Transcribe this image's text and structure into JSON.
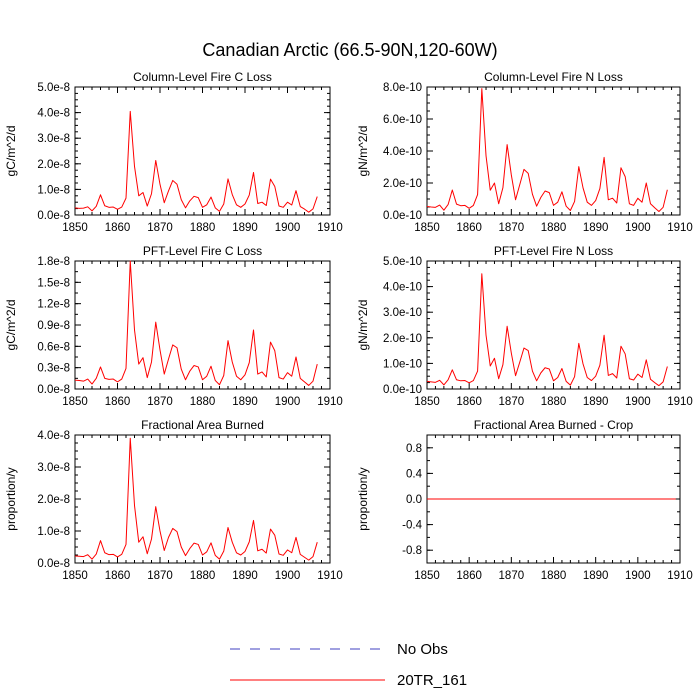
{
  "figure": {
    "title": "Canadian Arctic (66.5-90N,120-60W)"
  },
  "colors": {
    "series_20tr": "#ff0000",
    "series_obs": "#4040c0",
    "axis": "#000000"
  },
  "legend": {
    "placement": "bottom-center",
    "items": [
      {
        "name": "No Obs",
        "style": "dashed",
        "color": "#4040c0"
      },
      {
        "name": "20TR_161",
        "style": "solid",
        "color": "#ff0000"
      }
    ]
  },
  "chart_data": [
    {
      "type": "line",
      "title": "Column-Level Fire C Loss",
      "ylabel": "gC/m^2/d",
      "xlim": [
        1850,
        1910
      ],
      "ylim": [
        0,
        5e-08
      ],
      "xticks": [
        1850,
        1860,
        1870,
        1880,
        1890,
        1900,
        1910
      ],
      "xtick_labels": [
        "1850",
        "1860",
        "1870",
        "1880",
        "1890",
        "1900",
        "1910"
      ],
      "yticks": [
        0,
        1e-08,
        2e-08,
        3e-08,
        4e-08,
        5e-08
      ],
      "ytick_labels": [
        "0.0e-8",
        "1.0e-8",
        "2.0e-8",
        "3.0e-8",
        "4.0e-8",
        "5.0e-8"
      ],
      "minor_yticks": 4,
      "series": [
        {
          "name": "20TR_161",
          "color": "#ff0000",
          "x_start": 1850,
          "values": [
            2.8e-09,
            2.6e-09,
            2.7e-09,
            3.2e-09,
            1.6e-09,
            3.4e-09,
            7.9e-09,
            3.6e-09,
            3e-09,
            3.1e-09,
            2.2e-09,
            3.1e-09,
            6.6e-09,
            4.05e-08,
            1.9e-08,
            7.5e-09,
            8.8e-09,
            3.5e-09,
            8.3e-09,
            2.13e-08,
            1.2e-08,
            4.8e-09,
            9.4e-09,
            1.35e-08,
            1.2e-08,
            6e-09,
            2.8e-09,
            5.5e-09,
            7.3e-09,
            6.8e-09,
            3e-09,
            4e-09,
            7e-09,
            2.8e-09,
            1.4e-09,
            4.3e-09,
            1.41e-08,
            8e-09,
            4e-09,
            3e-09,
            4.3e-09,
            7.8e-09,
            1.66e-08,
            4.5e-09,
            5e-09,
            3.7e-09,
            1.4e-08,
            1.12e-08,
            3.5e-09,
            3e-09,
            5e-09,
            3.9e-09,
            9.5e-09,
            3.3e-09,
            2.3e-09,
            1.1e-09,
            2.4e-09,
            7.2e-09
          ]
        }
      ]
    },
    {
      "type": "line",
      "title": "Column-Level Fire N Loss",
      "ylabel": "gN/m^2/d",
      "xlim": [
        1850,
        1910
      ],
      "ylim": [
        0,
        8e-10
      ],
      "xticks": [
        1850,
        1860,
        1870,
        1880,
        1890,
        1900,
        1910
      ],
      "xtick_labels": [
        "1850",
        "1860",
        "1870",
        "1880",
        "1890",
        "1900",
        "1910"
      ],
      "yticks": [
        0,
        2e-10,
        4e-10,
        6e-10,
        8e-10
      ],
      "ytick_labels": [
        "0.0e-10",
        "2.0e-10",
        "4.0e-10",
        "6.0e-10",
        "8.0e-10"
      ],
      "minor_yticks": 4,
      "series": [
        {
          "name": "20TR_161",
          "color": "#ff0000",
          "x_start": 1850,
          "values": [
            5.3e-11,
            5e-11,
            4.8e-11,
            6.2e-11,
            3e-11,
            6.5e-11,
            1.56e-10,
            6.8e-11,
            5.8e-11,
            6e-11,
            4.2e-11,
            6e-11,
            1.28e-10,
            7.9e-10,
            3.7e-10,
            1.55e-10,
            2e-10,
            7e-11,
            1.7e-10,
            4.4e-10,
            2.5e-10,
            9.5e-11,
            1.9e-10,
            2.85e-10,
            2.6e-10,
            1.3e-10,
            5.5e-11,
            1.1e-10,
            1.5e-10,
            1.4e-10,
            6e-11,
            8e-11,
            1.45e-10,
            5.5e-11,
            2.8e-11,
            8.5e-11,
            3.02e-10,
            1.7e-10,
            8e-11,
            6e-11,
            9e-11,
            1.65e-10,
            3.6e-10,
            9.5e-11,
            1.05e-10,
            7.5e-11,
            2.95e-10,
            2.4e-10,
            7e-11,
            6e-11,
            1.05e-10,
            8e-11,
            2e-10,
            7e-11,
            4.5e-11,
            2.2e-11,
            4.8e-11,
            1.58e-10
          ]
        }
      ]
    },
    {
      "type": "line",
      "title": "PFT-Level Fire C Loss",
      "ylabel": "gC/m^2/d",
      "xlim": [
        1850,
        1910
      ],
      "ylim": [
        0,
        1.8e-08
      ],
      "xticks": [
        1850,
        1860,
        1870,
        1880,
        1890,
        1900,
        1910
      ],
      "xtick_labels": [
        "1850",
        "1860",
        "1870",
        "1880",
        "1890",
        "1900",
        "1910"
      ],
      "yticks": [
        0,
        3e-09,
        6e-09,
        9e-09,
        1.2e-08,
        1.5e-08,
        1.8e-08
      ],
      "ytick_labels": [
        "0.0e-8",
        "0.3e-8",
        "0.6e-8",
        "0.9e-8",
        "1.2e-8",
        "1.5e-8",
        "1.8e-8"
      ],
      "minor_yticks": 2,
      "series": [
        {
          "name": "20TR_161",
          "color": "#ff0000",
          "x_start": 1850,
          "values": [
            1.25e-09,
            1.2e-09,
            1.1e-09,
            1.4e-09,
            7e-10,
            1.5e-09,
            3.1e-09,
            1.5e-09,
            1.35e-09,
            1.4e-09,
            1e-09,
            1.4e-09,
            2.9e-09,
            1.8e-08,
            8.3e-09,
            3.5e-09,
            4.4e-09,
            1.6e-09,
            3.8e-09,
            9.4e-09,
            5.5e-09,
            2.1e-09,
            4.2e-09,
            6.2e-09,
            5.8e-09,
            2.8e-09,
            1.3e-09,
            2.5e-09,
            3.3e-09,
            3.1e-09,
            1.3e-09,
            1.8e-09,
            3.2e-09,
            1.2e-09,
            6e-10,
            1.9e-09,
            6.8e-09,
            3.8e-09,
            1.8e-09,
            1.3e-09,
            2e-09,
            3.7e-09,
            8.3e-09,
            2.1e-09,
            2.4e-09,
            1.7e-09,
            6.6e-09,
            5.4e-09,
            1.6e-09,
            1.4e-09,
            2.3e-09,
            1.8e-09,
            4.5e-09,
            1.5e-09,
            1e-09,
            5e-10,
            1.1e-09,
            3.5e-09
          ]
        }
      ]
    },
    {
      "type": "line",
      "title": "PFT-Level Fire N Loss",
      "ylabel": "gN/m^2/d",
      "xlim": [
        1850,
        1910
      ],
      "ylim": [
        0,
        5e-10
      ],
      "xticks": [
        1850,
        1860,
        1870,
        1880,
        1890,
        1900,
        1910
      ],
      "xtick_labels": [
        "1850",
        "1860",
        "1870",
        "1880",
        "1890",
        "1900",
        "1910"
      ],
      "yticks": [
        0,
        1e-10,
        2e-10,
        3e-10,
        4e-10,
        5e-10
      ],
      "ytick_labels": [
        "0.0e-10",
        "1.0e-10",
        "2.0e-10",
        "3.0e-10",
        "4.0e-10",
        "5.0e-10"
      ],
      "minor_yticks": 4,
      "series": [
        {
          "name": "20TR_161",
          "color": "#ff0000",
          "x_start": 1850,
          "values": [
            3e-11,
            2.8e-11,
            2.6e-11,
            3.4e-11,
            1.6e-11,
            3.6e-11,
            7.5e-11,
            3.6e-11,
            3.2e-11,
            3.3e-11,
            2.4e-11,
            3.3e-11,
            7e-11,
            4.5e-10,
            2.1e-10,
            9e-11,
            1.2e-10,
            4e-11,
            9.5e-11,
            2.45e-10,
            1.4e-10,
            5.2e-11,
            1.05e-10,
            1.6e-10,
            1.5e-10,
            7e-11,
            3.2e-11,
            6.3e-11,
            8.3e-11,
            7.8e-11,
            3.2e-11,
            4.5e-11,
            8e-11,
            3e-11,
            1.5e-11,
            4.8e-11,
            1.78e-10,
            9.8e-11,
            4.5e-11,
            3.3e-11,
            5e-11,
            9.3e-11,
            2.1e-10,
            5.3e-11,
            6e-11,
            4.3e-11,
            1.67e-10,
            1.37e-10,
            4e-11,
            3.5e-11,
            5.8e-11,
            4.5e-11,
            1.14e-10,
            3.8e-11,
            2.5e-11,
            1.3e-11,
            2.8e-11,
            8.8e-11
          ]
        }
      ]
    },
    {
      "type": "line",
      "title": "Fractional Area Burned",
      "ylabel": "proportion/y",
      "xlim": [
        1850,
        1910
      ],
      "ylim": [
        0,
        4e-08
      ],
      "xticks": [
        1850,
        1860,
        1870,
        1880,
        1890,
        1900,
        1910
      ],
      "xtick_labels": [
        "1850",
        "1860",
        "1870",
        "1880",
        "1890",
        "1900",
        "1910"
      ],
      "yticks": [
        0,
        1e-08,
        2e-08,
        3e-08,
        4e-08
      ],
      "ytick_labels": [
        "0.0e-8",
        "1.0e-8",
        "2.0e-8",
        "3.0e-8",
        "4.0e-8"
      ],
      "minor_yticks": 4,
      "series": [
        {
          "name": "20TR_161",
          "color": "#ff0000",
          "x_start": 1850,
          "values": [
            2.2e-09,
            2.1e-09,
            2e-09,
            2.6e-09,
            1.2e-09,
            2.8e-09,
            7e-09,
            3.2e-09,
            2.6e-09,
            2.7e-09,
            1.9e-09,
            2.7e-09,
            5.8e-09,
            3.9e-08,
            1.8e-08,
            6.5e-09,
            8.2e-09,
            2.9e-09,
            7.5e-09,
            1.76e-08,
            1e-08,
            3.9e-09,
            8e-09,
            1.08e-08,
            9.8e-09,
            5e-09,
            2.3e-09,
            4.5e-09,
            6.2e-09,
            5.8e-09,
            2.5e-09,
            3.5e-09,
            6.3e-09,
            2.4e-09,
            1.2e-09,
            3.7e-09,
            1.11e-08,
            6.5e-09,
            3.2e-09,
            2.5e-09,
            3.6e-09,
            6.6e-09,
            1.33e-08,
            3.8e-09,
            4.3e-09,
            3.1e-09,
            1.06e-08,
            8.7e-09,
            2.8e-09,
            2.4e-09,
            4.1e-09,
            3.2e-09,
            8e-09,
            2.7e-09,
            1.8e-09,
            9e-10,
            2e-09,
            6.5e-09
          ]
        }
      ]
    },
    {
      "type": "line",
      "title": "Fractional Area Burned - Crop",
      "ylabel": "proportion/y",
      "xlim": [
        1850,
        1910
      ],
      "ylim": [
        -1.0,
        1.0
      ],
      "xticks": [
        1850,
        1860,
        1870,
        1880,
        1890,
        1900,
        1910
      ],
      "xtick_labels": [
        "1850",
        "1860",
        "1870",
        "1880",
        "1890",
        "1900",
        "1910"
      ],
      "yticks": [
        -0.8,
        -0.4,
        0.0,
        0.4,
        0.8
      ],
      "ytick_labels": [
        "-0.8",
        "-0.4",
        "0.0",
        "0.4",
        "0.8"
      ],
      "minor_yticks": 2,
      "series": [
        {
          "name": "20TR_161",
          "color": "#ff0000",
          "x": [
            1850,
            1909
          ],
          "values": [
            0,
            0
          ]
        }
      ]
    }
  ]
}
